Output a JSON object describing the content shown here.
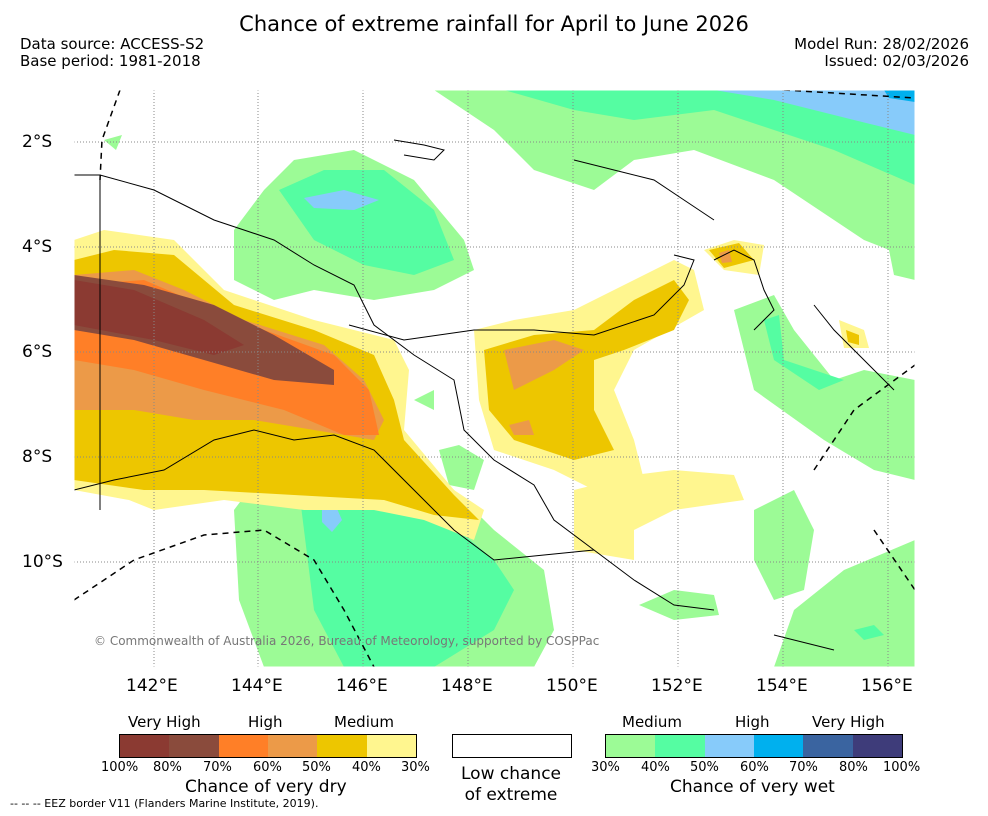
{
  "title": "Chance of extreme rainfall for April to June 2026",
  "meta": {
    "data_source": "Data source: ACCESS-S2",
    "base_period": "Base period: 1981-2018",
    "model_run": "Model Run: 28/02/2026",
    "issued": "Issued: 02/03/2026"
  },
  "map": {
    "lat_ticks": [
      "2°S",
      "4°S",
      "6°S",
      "8°S",
      "10°S"
    ],
    "lon_ticks": [
      "142°E",
      "144°E",
      "146°E",
      "148°E",
      "150°E",
      "152°E",
      "154°E",
      "156°E"
    ],
    "copyright": "© Commonwealth of Australia 2026, Bureau of Meteorology, supported by COSPPac"
  },
  "legend": {
    "dry": {
      "categories": [
        "Very High",
        "High",
        "Medium"
      ],
      "percents": [
        "100%",
        "80%",
        "70%",
        "60%",
        "50%",
        "40%",
        "30%"
      ],
      "colors": [
        "#8b3a32",
        "#8a4b3c",
        "#ff7f27",
        "#ec9a48",
        "#edc600",
        "#fff68f"
      ],
      "title": "Chance of very dry"
    },
    "neutral": {
      "title_line1": "Low chance",
      "title_line2": "of extreme",
      "color": "#ffffff"
    },
    "wet": {
      "categories": [
        "Medium",
        "High",
        "Very High"
      ],
      "percents": [
        "30%",
        "40%",
        "50%",
        "60%",
        "70%",
        "80%",
        "100%"
      ],
      "colors": [
        "#9cfb96",
        "#55fda2",
        "#87cbfa",
        "#00b0ee",
        "#3a64a0",
        "#3e3c7a"
      ],
      "title": "Chance of very wet"
    }
  },
  "footer": "--  --  -- EEZ border V11 (Flanders Marine Institute, 2019)."
}
